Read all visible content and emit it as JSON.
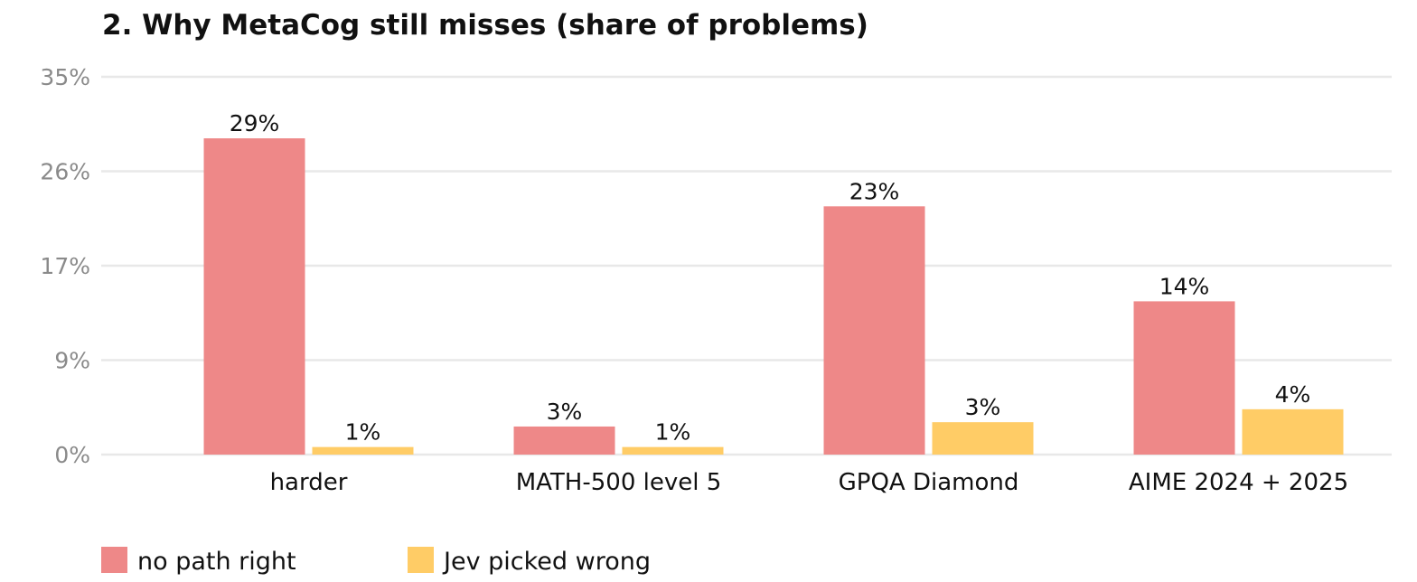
{
  "chart_data": {
    "type": "bar",
    "title": "2. Why MetaCog still misses (share of problems)",
    "xlabel": "",
    "ylabel": "",
    "categories": [
      "harder",
      "MATH-500 level 5",
      "GPQA Diamond",
      "AIME 2024 + 2025"
    ],
    "series": [
      {
        "name": "no path right",
        "color": "#ee8888",
        "values": [
          29.3,
          2.6,
          23.0,
          14.2
        ],
        "labels": [
          "29%",
          "3%",
          "23%",
          "14%"
        ]
      },
      {
        "name": "Jev picked wrong",
        "color": "#ffcc66",
        "values": [
          0.7,
          0.7,
          3.0,
          4.2
        ],
        "labels": [
          "1%",
          "1%",
          "3%",
          "4%"
        ]
      }
    ],
    "ylim": [
      0,
      35
    ],
    "yticks": [
      0,
      8.75,
      17.5,
      26.25,
      35
    ],
    "ytick_labels": [
      "0%",
      "9%",
      "17%",
      "26%",
      "35%"
    ],
    "grid": true,
    "legend_position": "bottom-left"
  }
}
